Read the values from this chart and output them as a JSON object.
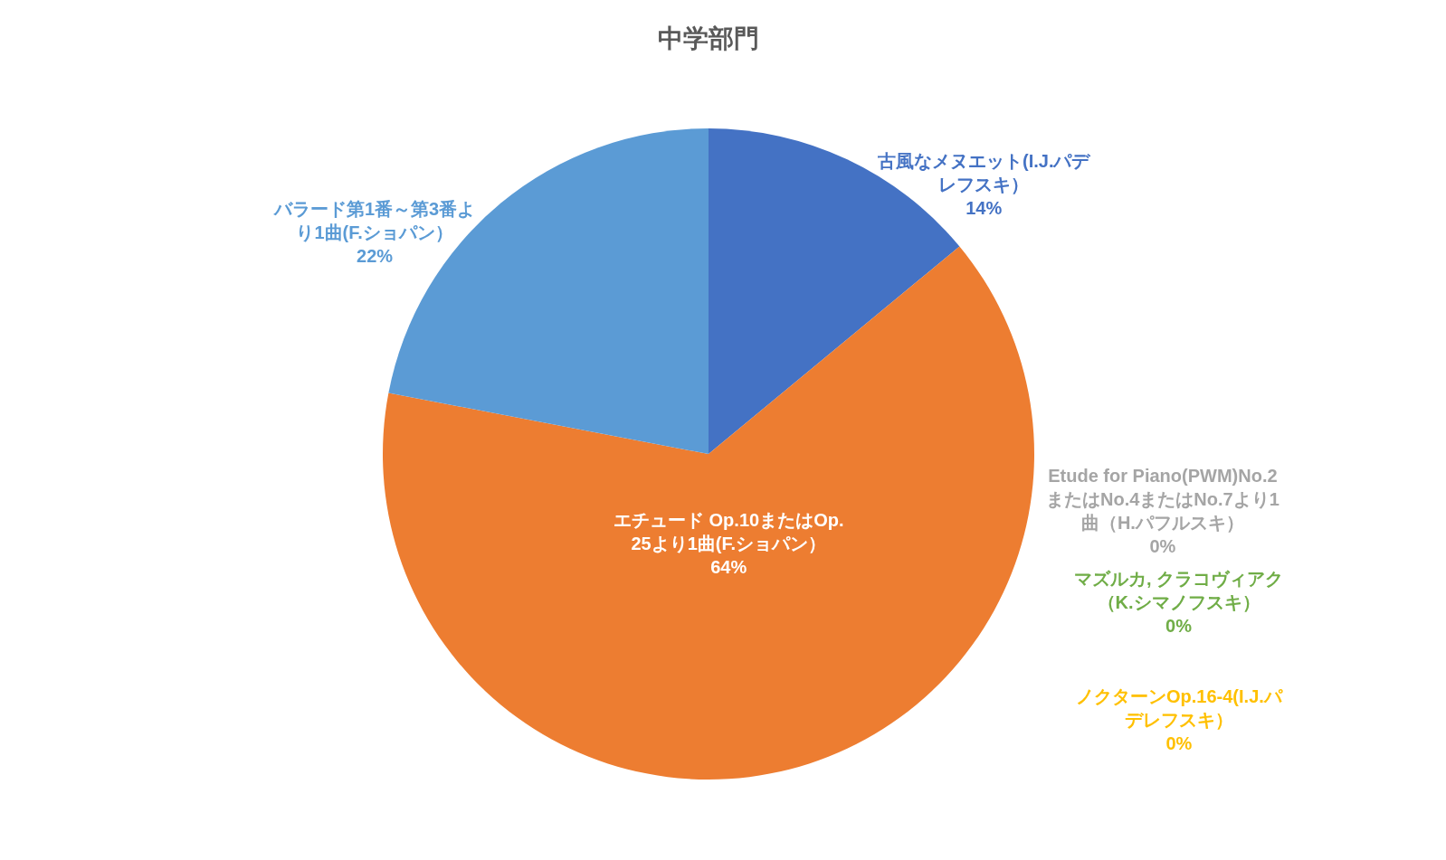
{
  "chart_data": {
    "type": "pie",
    "title": "中学部門",
    "categories": [
      "古風なメヌエット(I.J.パデレフスキ）",
      "エチュード Op.10またはOp.25より1曲(F.ショパン）",
      "Etude for Piano(PWM)No.2またはNo.4またはNo.7より1曲（H.パフルスキ）",
      "ノクターンOp.16-4(I.J.パデレフスキ）",
      "バラード第1番～第3番より1曲(F.ショパン）",
      "マズルカ, クラコヴィアク（K.シマノフスキ）"
    ],
    "values": [
      14,
      64,
      0,
      0,
      22,
      0
    ],
    "value_labels": [
      "14%",
      "64%",
      "0%",
      "0%",
      "22%",
      "0%"
    ],
    "colors": [
      "#4472c4",
      "#ed7d31",
      "#a5a5a5",
      "#ffc000",
      "#5b9bd5",
      "#70ad47"
    ],
    "legend": false
  }
}
